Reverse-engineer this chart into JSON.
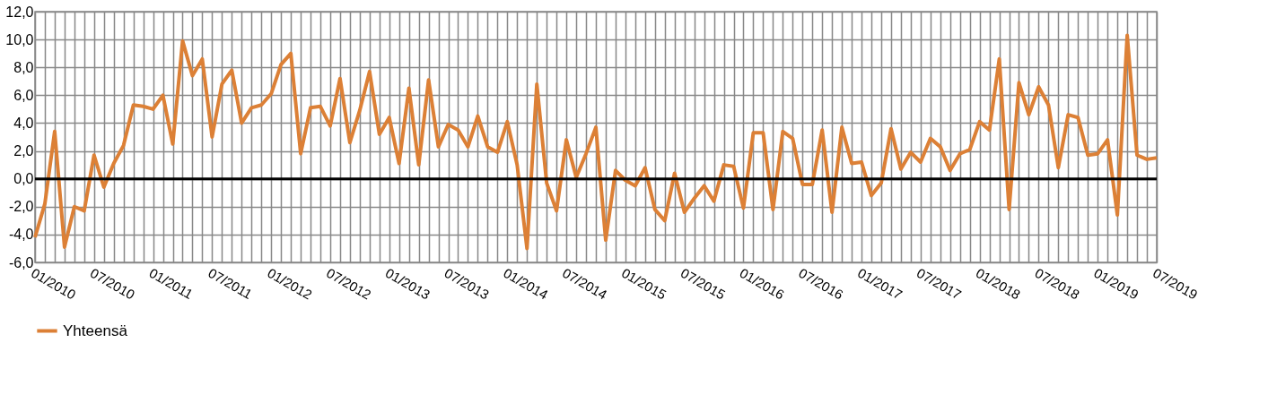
{
  "chart_data": {
    "type": "line",
    "categories": [
      "01/2010",
      null,
      null,
      null,
      null,
      null,
      "07/2010",
      null,
      null,
      null,
      null,
      null,
      "01/2011",
      null,
      null,
      null,
      null,
      null,
      "07/2011",
      null,
      null,
      null,
      null,
      null,
      "01/2012",
      null,
      null,
      null,
      null,
      null,
      "07/2012",
      null,
      null,
      null,
      null,
      null,
      "01/2013",
      null,
      null,
      null,
      null,
      null,
      "07/2013",
      null,
      null,
      null,
      null,
      null,
      "01/2014",
      null,
      null,
      null,
      null,
      null,
      "07/2014",
      null,
      null,
      null,
      null,
      null,
      "01/2015",
      null,
      null,
      null,
      null,
      null,
      "07/2015",
      null,
      null,
      null,
      null,
      null,
      "01/2016",
      null,
      null,
      null,
      null,
      null,
      "07/2016",
      null,
      null,
      null,
      null,
      null,
      "01/2017",
      null,
      null,
      null,
      null,
      null,
      "07/2017",
      null,
      null,
      null,
      null,
      null,
      "01/2018",
      null,
      null,
      null,
      null,
      null,
      "07/2018",
      null,
      null,
      null,
      null,
      null,
      "01/2019",
      null,
      null,
      null,
      null,
      null,
      "07/2019"
    ],
    "series": [
      {
        "name": "Yhteensä",
        "color": "#dc8036",
        "values": [
          -4.2,
          -1.8,
          3.4,
          -4.9,
          -2.0,
          -2.3,
          1.7,
          -0.6,
          1.1,
          2.4,
          5.3,
          5.2,
          5.0,
          6.0,
          2.5,
          9.9,
          7.4,
          8.6,
          3.0,
          6.8,
          7.8,
          4.0,
          5.1,
          5.3,
          6.1,
          8.2,
          9.0,
          1.8,
          5.1,
          5.2,
          3.8,
          7.2,
          2.6,
          4.9,
          7.7,
          3.2,
          4.4,
          1.1,
          6.5,
          1.0,
          7.1,
          2.3,
          3.9,
          3.5,
          2.3,
          4.5,
          2.3,
          1.9,
          4.1,
          1.0,
          -5.0,
          6.8,
          -0.3,
          -2.3,
          2.8,
          0.1,
          1.8,
          3.7,
          -4.4,
          0.6,
          -0.1,
          -0.5,
          0.8,
          -2.2,
          -3.0,
          0.4,
          -2.4,
          -1.4,
          -0.5,
          -1.6,
          1.0,
          0.9,
          -2.1,
          3.3,
          3.3,
          -2.2,
          3.4,
          2.9,
          -0.4,
          -0.4,
          3.5,
          -2.4,
          3.7,
          1.1,
          1.2,
          -1.2,
          -0.3,
          3.6,
          0.7,
          1.9,
          1.2,
          2.9,
          2.3,
          0.6,
          1.8,
          2.1,
          4.1,
          3.5,
          8.6,
          -2.2,
          6.9,
          4.6,
          6.6,
          5.3,
          0.8,
          4.6,
          4.4,
          1.7,
          1.8,
          2.8,
          -2.6,
          10.3,
          1.7,
          1.4,
          1.5
        ]
      }
    ],
    "ylim": [
      -6,
      12
    ],
    "yticks": [
      {
        "value": -6,
        "label": "-6,0"
      },
      {
        "value": -4,
        "label": "-4,0"
      },
      {
        "value": -2,
        "label": "-2,0"
      },
      {
        "value": 0,
        "label": "0,0"
      },
      {
        "value": 2,
        "label": "2,0"
      },
      {
        "value": 4,
        "label": "4,0"
      },
      {
        "value": 6,
        "label": "6,0"
      },
      {
        "value": 8,
        "label": "8,0"
      },
      {
        "value": 10,
        "label": "10,0"
      },
      {
        "value": 12,
        "label": "12,0"
      }
    ],
    "ref_lines": [
      {
        "axis": "y",
        "value": 0,
        "color": "#000000"
      }
    ],
    "grid": true,
    "legend": "bottom",
    "marker": "none",
    "line_style": "solid"
  }
}
